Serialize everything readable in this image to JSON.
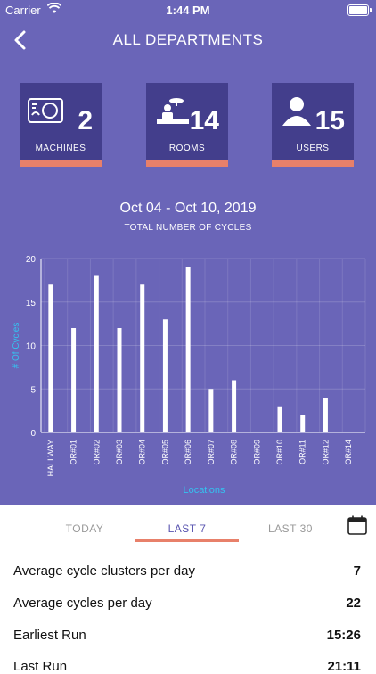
{
  "status_bar": {
    "carrier": "Carrier",
    "time": "1:44 PM"
  },
  "nav": {
    "title": "ALL DEPARTMENTS"
  },
  "stats": [
    {
      "value": "2",
      "label": "MACHINES",
      "icon": "machine-icon"
    },
    {
      "value": "14",
      "label": "ROOMS",
      "icon": "room-icon"
    },
    {
      "value": "15",
      "label": "USERS",
      "icon": "user-icon"
    }
  ],
  "date_range": "Oct 04 - Oct 10, 2019",
  "chart_title": "TOTAL NUMBER OF CYCLES",
  "chart_data": {
    "type": "bar",
    "categories": [
      "HALLWAY",
      "OR#01",
      "OR#02",
      "OR#03",
      "OR#04",
      "OR#05",
      "OR#06",
      "OR#07",
      "OR#08",
      "OR#09",
      "OR#10",
      "OR#11",
      "OR#12",
      "OR#14"
    ],
    "values": [
      17,
      12,
      18,
      12,
      17,
      13,
      19,
      5,
      6,
      0,
      3,
      2,
      4,
      0
    ],
    "xlabel": "Locations",
    "ylabel": "# Of Cycles",
    "ylim": [
      0,
      20
    ],
    "yticks": [
      0,
      5,
      10,
      15,
      20
    ],
    "grid": true
  },
  "tabs": [
    {
      "label": "TODAY",
      "active": false
    },
    {
      "label": "LAST 7",
      "active": true
    },
    {
      "label": "LAST 30",
      "active": false
    }
  ],
  "summary": [
    {
      "label": "Average cycle clusters per day",
      "value": "7"
    },
    {
      "label": "Average cycles per day",
      "value": "22"
    },
    {
      "label": "Earliest Run",
      "value": "15:26"
    },
    {
      "label": "Last Run",
      "value": "21:11"
    }
  ],
  "colors": {
    "header_bg": "#6a65b8",
    "card_bg": "#433e8c",
    "accent": "#e8806a",
    "axis_label": "#35c2f0"
  }
}
